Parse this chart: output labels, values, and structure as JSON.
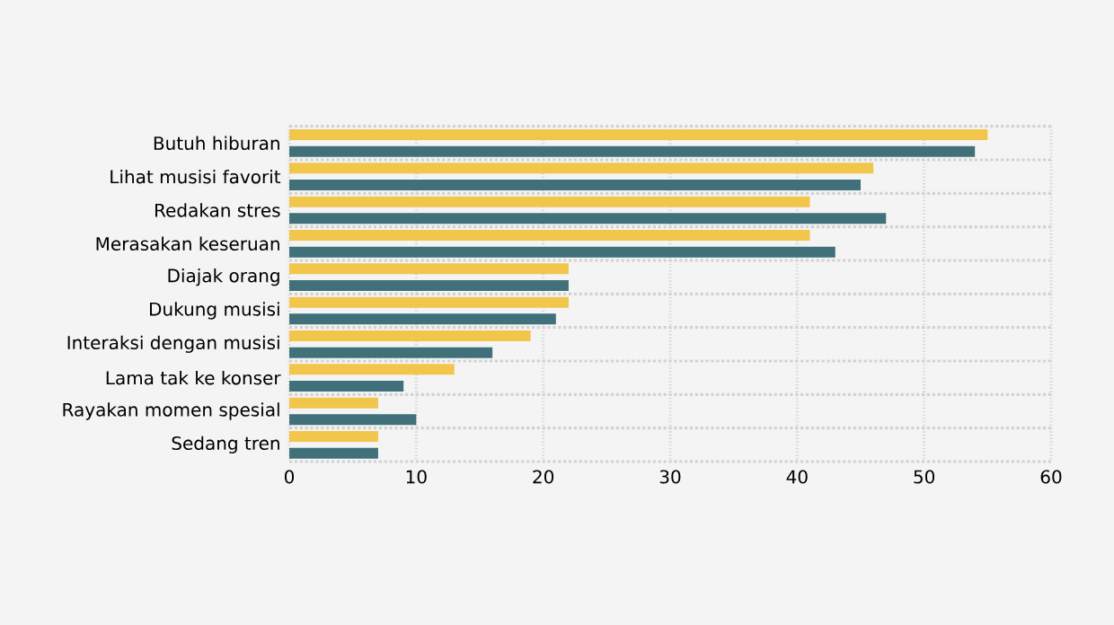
{
  "chart_data": {
    "type": "bar",
    "orientation": "horizontal",
    "categories": [
      "Butuh hiburan",
      "Lihat musisi favorit",
      "Redakan stres",
      "Merasakan keseruan",
      "Diajak orang",
      "Dukung musisi",
      "Interaksi dengan musisi",
      "Lama tak ke konser",
      "Rayakan momen spesial",
      "Sedang tren"
    ],
    "series": [
      {
        "color": "#f2c54b",
        "values": [
          55,
          46,
          41,
          41,
          22,
          22,
          19,
          13,
          7,
          7
        ]
      },
      {
        "color": "#40707a",
        "values": [
          54,
          45,
          47,
          43,
          22,
          21,
          16,
          9,
          10,
          7
        ]
      }
    ],
    "xlim": [
      0,
      60
    ],
    "xticks": [
      0,
      10,
      20,
      30,
      40,
      50,
      60
    ],
    "grid": true
  }
}
